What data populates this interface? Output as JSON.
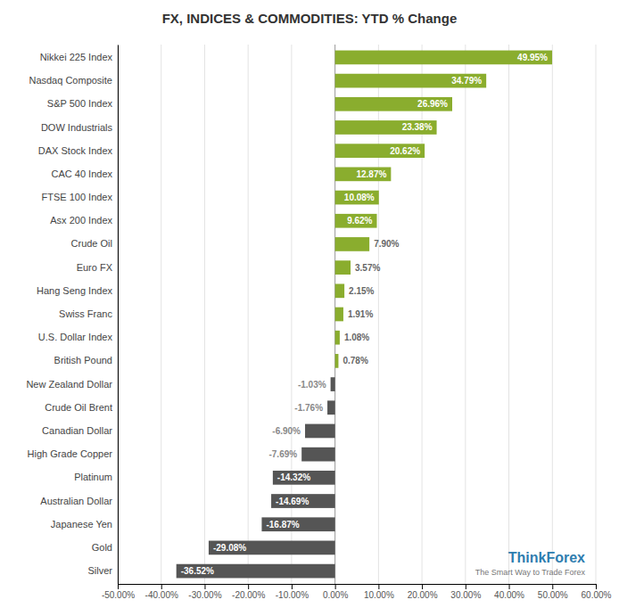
{
  "chart_data": {
    "type": "bar",
    "orientation": "horizontal",
    "title": "FX, INDICES & COMMODITIES: YTD % Change",
    "categories": [
      "Silver",
      "Gold",
      "Japanese Yen",
      "Australian Dollar",
      "Platinum",
      "High Grade Copper",
      "Canadian Dollar",
      "Crude Oil Brent",
      "New Zealand Dollar",
      "British Pound",
      "U.S. Dollar Index",
      "Swiss Franc",
      "Hang Seng Index",
      "Euro FX",
      "Crude Oil",
      "Asx 200 Index",
      "FTSE 100 Index",
      "CAC 40 Index",
      "DAX Stock Index",
      "DOW Industrials",
      "S&P 500 Index",
      "Nasdaq Composite",
      "Nikkei 225 Index"
    ],
    "values": [
      -36.52,
      -29.08,
      -16.87,
      -14.69,
      -14.32,
      -7.69,
      -6.9,
      -1.76,
      -1.03,
      0.78,
      1.08,
      1.91,
      2.15,
      3.57,
      7.9,
      9.62,
      10.08,
      12.87,
      20.62,
      23.38,
      26.96,
      34.79,
      49.95
    ],
    "value_labels": [
      "-36.52%",
      "-29.08%",
      "-16.87%",
      "-14.69%",
      "-14.32%",
      "-7.69%",
      "-6.90%",
      "-1.76%",
      "-1.03%",
      "0.78%",
      "1.08%",
      "1.91%",
      "2.15%",
      "3.57%",
      "7.90%",
      "9.62%",
      "10.08%",
      "12.87%",
      "20.62%",
      "23.38%",
      "26.96%",
      "34.79%",
      "49.95%"
    ],
    "colors": [
      "#555555",
      "#555555",
      "#555555",
      "#555555",
      "#555555",
      "#555555",
      "#555555",
      "#555555",
      "#555555",
      "#8AAD2E",
      "#8AAD2E",
      "#8AAD2E",
      "#8AAD2E",
      "#8AAD2E",
      "#8AAD2E",
      "#8AAD2E",
      "#8AAD2E",
      "#8AAD2E",
      "#8AAD2E",
      "#8AAD2E",
      "#8AAD2E",
      "#8AAD2E",
      "#8AAD2E"
    ],
    "data_labels": true,
    "xlim": [
      -50,
      60
    ],
    "xticks": [
      {
        "value": -50,
        "label": "-50.00%"
      },
      {
        "value": -40,
        "label": "-40.00%"
      },
      {
        "value": -30,
        "label": "-30.00%"
      },
      {
        "value": -20,
        "label": "-20.00%"
      },
      {
        "value": -10,
        "label": "-10.00%"
      },
      {
        "value": 0,
        "label": "0.00%"
      },
      {
        "value": 10,
        "label": "10.00%"
      },
      {
        "value": 20,
        "label": "20.00%"
      },
      {
        "value": 30,
        "label": "30.00%"
      },
      {
        "value": 40,
        "label": "40.00%"
      },
      {
        "value": 50,
        "label": "50.00%"
      },
      {
        "value": 60,
        "label": "60.00%"
      }
    ],
    "grid": true,
    "annotations": [
      "ThinkForex",
      "The Smart Way to Trade Forex"
    ]
  }
}
